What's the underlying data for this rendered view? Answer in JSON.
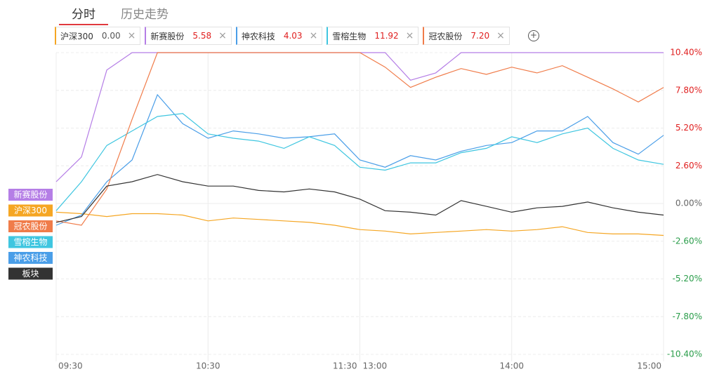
{
  "tabs": [
    "分时",
    "历史走势"
  ],
  "chart_data": {
    "type": "line",
    "categories": [
      "09:30",
      null,
      null,
      null,
      null,
      null,
      "10:30",
      null,
      null,
      null,
      null,
      null,
      "11:30",
      null,
      null,
      null,
      null,
      null,
      "14:00",
      null,
      null,
      null,
      null,
      null,
      "15:00"
    ],
    "x_break_label": "13:00",
    "ylim": [
      -10.4,
      10.4
    ],
    "yticks": [
      {
        "value": -10.4,
        "label": "-10.40%"
      },
      {
        "value": -7.8,
        "label": "-7.80%"
      },
      {
        "value": -5.2,
        "label": "-5.20%"
      },
      {
        "value": -2.6,
        "label": "-2.60%"
      },
      {
        "value": 0,
        "label": "0.00%"
      },
      {
        "value": 2.6,
        "label": "2.60%"
      },
      {
        "value": 5.2,
        "label": "5.20%"
      },
      {
        "value": 7.8,
        "label": "7.80%"
      },
      {
        "value": 10.4,
        "label": "10.40%"
      }
    ],
    "grid": true,
    "series": [
      {
        "name": "沪深300",
        "color": "#f5a623",
        "legend_value": "0.00",
        "values": [
          -0.6,
          -0.7,
          -0.9,
          -0.7,
          -0.7,
          -0.8,
          -1.2,
          -1.0,
          -1.1,
          -1.2,
          -1.3,
          -1.5,
          -1.8,
          -1.9,
          -2.1,
          -2.0,
          -1.9,
          -1.8,
          -1.9,
          -1.8,
          -1.6,
          -2.0,
          -2.1,
          -2.1,
          -2.2
        ]
      },
      {
        "name": "新赛股份",
        "color": "#b57ee6",
        "legend_value": "5.58",
        "values": [
          1.5,
          3.2,
          9.2,
          10.4,
          10.4,
          10.4,
          10.4,
          10.4,
          10.4,
          10.4,
          10.4,
          10.4,
          10.4,
          10.4,
          8.5,
          9.0,
          10.4,
          10.4,
          10.4,
          10.4,
          10.4,
          10.4,
          10.4,
          10.4,
          10.4
        ]
      },
      {
        "name": "神农科技",
        "color": "#4a9ee8",
        "legend_value": "4.03",
        "values": [
          -1.5,
          -0.8,
          1.5,
          3.0,
          7.5,
          5.5,
          4.5,
          5.0,
          4.8,
          4.5,
          4.6,
          4.8,
          3.0,
          2.5,
          3.3,
          3.0,
          3.6,
          4.0,
          4.2,
          5.0,
          5.0,
          6.0,
          4.2,
          3.4,
          4.7
        ]
      },
      {
        "name": "雪榕生物",
        "color": "#3fc6e0",
        "legend_value": "11.92",
        "values": [
          -0.5,
          1.5,
          4.0,
          5.0,
          6.0,
          6.2,
          4.8,
          4.5,
          4.3,
          3.8,
          4.6,
          4.0,
          2.5,
          2.3,
          2.8,
          2.8,
          3.5,
          3.8,
          4.6,
          4.2,
          4.8,
          5.2,
          3.8,
          3.0,
          2.7
        ]
      },
      {
        "name": "冠农股份",
        "color": "#f07c4a",
        "legend_value": "7.20",
        "values": [
          -1.2,
          -1.5,
          1.0,
          5.8,
          10.4,
          10.4,
          10.4,
          10.4,
          10.4,
          10.4,
          10.4,
          10.4,
          10.4,
          9.4,
          8.0,
          8.7,
          9.3,
          8.9,
          9.4,
          9.0,
          9.5,
          8.7,
          7.9,
          7.0,
          8.0
        ]
      },
      {
        "name": "板块",
        "color": "#333333",
        "values": [
          -1.3,
          -0.9,
          1.2,
          1.5,
          2.0,
          1.5,
          1.2,
          1.2,
          0.9,
          0.8,
          1.0,
          0.8,
          0.3,
          -0.5,
          -0.6,
          -0.8,
          0.2,
          -0.2,
          -0.6,
          -0.3,
          -0.2,
          0.1,
          -0.3,
          -0.6,
          -0.8
        ]
      }
    ],
    "side_labels": [
      "新赛股份",
      "沪深300",
      "冠农股份",
      "雪榕生物",
      "神农科技",
      "板块"
    ]
  }
}
